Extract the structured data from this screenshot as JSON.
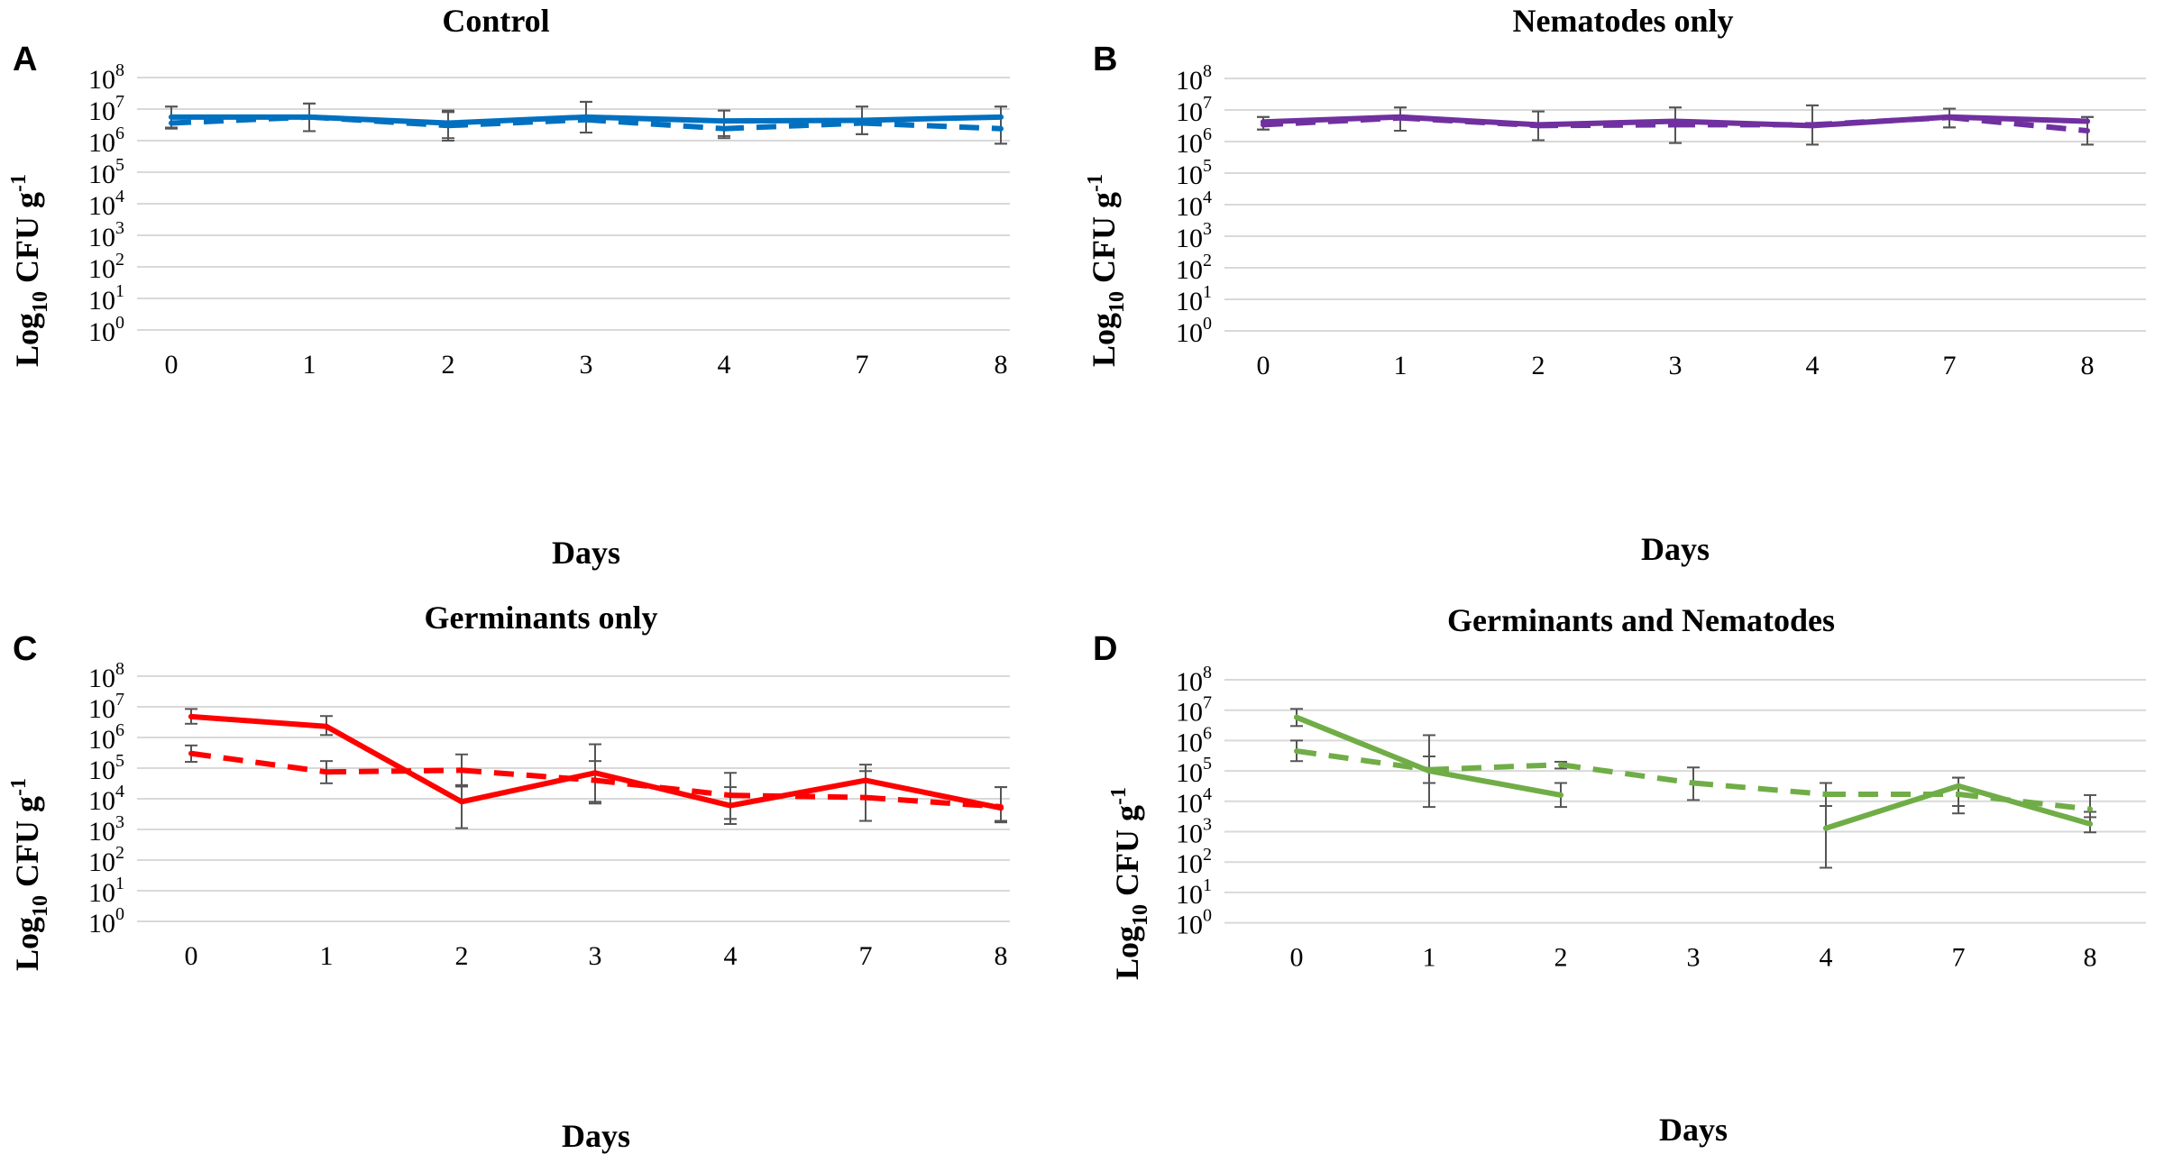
{
  "chart_data": [
    {
      "panel": "A",
      "type": "line",
      "title": "Control",
      "xlabel": "Days",
      "ylabel": "Log",
      "ylabel_sub": "10",
      "ylabel_rest": " CFU g",
      "ylabel_sup": "-1",
      "categories": [
        "0",
        "1",
        "2",
        "3",
        "4",
        "7",
        "8"
      ],
      "y_scale": "log",
      "ylim": [
        1,
        100000000
      ],
      "ytick_base": "10",
      "ytick_exponents": [
        "0",
        "1",
        "2",
        "3",
        "4",
        "5",
        "6",
        "7",
        "8"
      ],
      "grid": true,
      "color": "#0070C0",
      "series": [
        {
          "name": "solid",
          "style": "solid",
          "values": [
            5600000,
            5600000,
            3600000,
            5600000,
            4200000,
            4400000,
            5600000
          ],
          "err_low": [
            2400000,
            2000000,
            1200000,
            1800000,
            1400000,
            1600000,
            800000
          ],
          "err_high": [
            12000000,
            15000000,
            9000000,
            17000000,
            9000000,
            12000000,
            12000000
          ]
        },
        {
          "name": "dashed",
          "style": "dashed",
          "values": [
            3600000,
            5600000,
            3000000,
            4600000,
            2400000,
            3600000,
            2400000
          ],
          "err_low": [
            2600000,
            2000000,
            1000000,
            1800000,
            1200000,
            1600000,
            800000
          ],
          "err_high": [
            12000000,
            15000000,
            8000000,
            17000000,
            9000000,
            12000000,
            12000000
          ]
        }
      ]
    },
    {
      "panel": "B",
      "type": "line",
      "title": "Nematodes only",
      "xlabel": "Days",
      "ylabel": "Log",
      "ylabel_sub": "10",
      "ylabel_rest": " CFU g",
      "ylabel_sup": "-1",
      "categories": [
        "0",
        "1",
        "2",
        "3",
        "4",
        "7",
        "8"
      ],
      "y_scale": "log",
      "ylim": [
        1,
        100000000
      ],
      "ytick_base": "10",
      "ytick_exponents": [
        "0",
        "1",
        "2",
        "3",
        "4",
        "5",
        "6",
        "7",
        "8"
      ],
      "grid": true,
      "color": "#7030A0",
      "series": [
        {
          "name": "solid",
          "style": "solid",
          "values": [
            4200000,
            6000000,
            3400000,
            4400000,
            3200000,
            6000000,
            4400000
          ],
          "err_low": [
            2400000,
            2200000,
            1100000,
            900000,
            800000,
            2800000,
            800000
          ],
          "err_high": [
            6000000,
            12000000,
            9000000,
            12000000,
            14000000,
            11000000,
            6000000
          ]
        },
        {
          "name": "dashed",
          "style": "dashed",
          "values": [
            3400000,
            5600000,
            3200000,
            3400000,
            3400000,
            5800000,
            2200000
          ],
          "err_low": [
            2400000,
            2200000,
            1100000,
            900000,
            800000,
            2800000,
            800000
          ],
          "err_high": [
            6000000,
            12000000,
            9000000,
            12000000,
            14000000,
            11000000,
            6000000
          ]
        }
      ]
    },
    {
      "panel": "C",
      "type": "line",
      "title": "Germinants only",
      "xlabel": "Days",
      "ylabel": "Log",
      "ylabel_sub": "10",
      "ylabel_rest": " CFU g",
      "ylabel_sup": "-1",
      "categories": [
        "0",
        "1",
        "2",
        "3",
        "4",
        "7",
        "8"
      ],
      "y_scale": "log",
      "ylim": [
        1,
        100000000
      ],
      "ytick_base": "10",
      "ytick_exponents": [
        "0",
        "1",
        "2",
        "3",
        "4",
        "5",
        "6",
        "7",
        "8"
      ],
      "grid": true,
      "color": "#FF0000",
      "series": [
        {
          "name": "solid",
          "style": "solid",
          "values": [
            4800000,
            2300000,
            8000,
            70000,
            6000,
            40000,
            5000
          ],
          "err_low": [
            2800000,
            1200000,
            1100,
            8000,
            1500,
            1900,
            1700
          ],
          "err_high": [
            8500000,
            5000000,
            28000,
            600000,
            70000,
            130000,
            24000
          ]
        },
        {
          "name": "dashed",
          "style": "dashed",
          "values": [
            300000,
            75000,
            85000,
            40000,
            13000,
            11000,
            5500
          ],
          "err_low": [
            160000,
            32000,
            25000,
            7000,
            2200,
            1900,
            1900
          ],
          "err_high": [
            550000,
            170000,
            280000,
            170000,
            24000,
            80000,
            24000
          ]
        }
      ]
    },
    {
      "panel": "D",
      "type": "line",
      "title": "Germinants and Nematodes",
      "xlabel": "Days",
      "ylabel": "Log",
      "ylabel_sub": "10",
      "ylabel_rest": " CFU g",
      "ylabel_sup": "-1",
      "categories": [
        "0",
        "1",
        "2",
        "3",
        "4",
        "7",
        "8"
      ],
      "y_scale": "log",
      "ylim": [
        1,
        100000000
      ],
      "ytick_base": "10",
      "ytick_exponents": [
        "0",
        "1",
        "2",
        "3",
        "4",
        "5",
        "6",
        "7",
        "8"
      ],
      "grid": true,
      "color": "#70AD47",
      "series": [
        {
          "name": "solid",
          "style": "solid",
          "values": [
            5800000,
            100000,
            16000,
            null,
            1300,
            32000,
            1800
          ],
          "err_low": [
            3000000,
            6500,
            6500,
            null,
            65,
            4000,
            950
          ],
          "err_high": [
            11000000,
            300000,
            40000,
            null,
            40000,
            60000,
            4500
          ]
        },
        {
          "name": "dashed",
          "style": "dashed",
          "values": [
            450000,
            110000,
            160000,
            40000,
            17000,
            17000,
            5500
          ],
          "err_low": [
            210000,
            40000,
            120000,
            11000,
            7000,
            7000,
            3000
          ],
          "err_high": [
            1000000,
            1500000,
            200000,
            130000,
            40000,
            60000,
            16000
          ]
        }
      ]
    }
  ]
}
